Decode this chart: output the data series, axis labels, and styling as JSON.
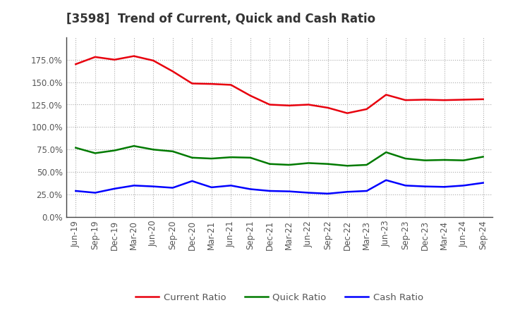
{
  "title": "[3598]  Trend of Current, Quick and Cash Ratio",
  "x_labels": [
    "Jun-19",
    "Sep-19",
    "Dec-19",
    "Mar-20",
    "Jun-20",
    "Sep-20",
    "Dec-20",
    "Mar-21",
    "Jun-21",
    "Sep-21",
    "Dec-21",
    "Mar-22",
    "Jun-22",
    "Sep-22",
    "Dec-22",
    "Mar-23",
    "Jun-23",
    "Sep-23",
    "Dec-23",
    "Mar-24",
    "Jun-24",
    "Sep-24"
  ],
  "current_ratio": [
    170.0,
    178.0,
    175.0,
    179.0,
    174.0,
    162.0,
    148.5,
    148.0,
    147.0,
    135.0,
    125.0,
    124.0,
    125.0,
    121.5,
    115.5,
    120.0,
    136.0,
    130.0,
    130.5,
    130.0,
    130.5,
    131.0
  ],
  "quick_ratio": [
    77.0,
    71.0,
    74.0,
    79.0,
    75.0,
    73.0,
    66.0,
    65.0,
    66.5,
    66.0,
    59.0,
    58.0,
    60.0,
    59.0,
    57.0,
    58.0,
    72.0,
    65.0,
    63.0,
    63.5,
    63.0,
    67.0
  ],
  "cash_ratio": [
    29.0,
    27.0,
    31.5,
    35.0,
    34.0,
    32.5,
    40.0,
    33.0,
    35.0,
    31.0,
    29.0,
    28.5,
    27.0,
    26.0,
    28.0,
    29.0,
    41.0,
    35.0,
    34.0,
    33.5,
    35.0,
    38.0
  ],
  "current_color": "#e8000d",
  "quick_color": "#007a00",
  "cash_color": "#0000ff",
  "bg_color": "#ffffff",
  "plot_bg_color": "#ffffff",
  "grid_color": "#aaaaaa",
  "ylim": [
    0.0,
    200.0
  ],
  "yticks": [
    0.0,
    25.0,
    50.0,
    75.0,
    100.0,
    125.0,
    150.0,
    175.0
  ],
  "line_width": 1.8,
  "legend_labels": [
    "Current Ratio",
    "Quick Ratio",
    "Cash Ratio"
  ],
  "title_fontsize": 12,
  "tick_fontsize": 8.5,
  "legend_fontsize": 9.5
}
